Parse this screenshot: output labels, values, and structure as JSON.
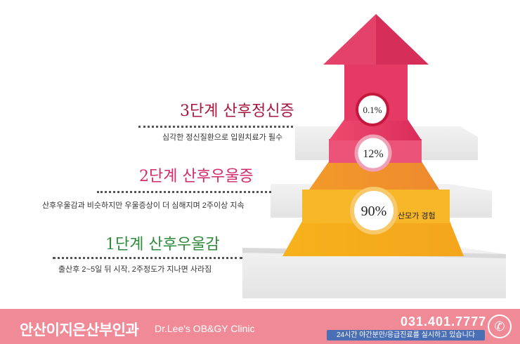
{
  "stages": [
    {
      "title": "3단계 산후정신증",
      "desc": "심각한 정신질환으로 입원치료가 필수",
      "rate": "0.1%",
      "color": "#a8173f"
    },
    {
      "title": "2단계 산후우울증",
      "desc": "산후우울감과 비슷하지만 우울증상이 더 심해지며 2주이상 지속",
      "rate": "12%",
      "color": "#d42a6b"
    },
    {
      "title": "1단계 산후우울감",
      "desc": "출산후 2~5일 뒤 시작, 2주정도가 지나면 사라짐",
      "rate": "90%",
      "rate_note": "산모가 경험",
      "color": "#2e8b3a"
    }
  ],
  "footer": {
    "clinic_name": "안산이지은산부인과",
    "clinic_sub": "Dr.Lee's OB&GY Clinic",
    "phone": "031.401.7777",
    "notice": "24시간 야간분만/응급진료를 실시하고 있습니다",
    "phone_icon": "phone-icon"
  }
}
